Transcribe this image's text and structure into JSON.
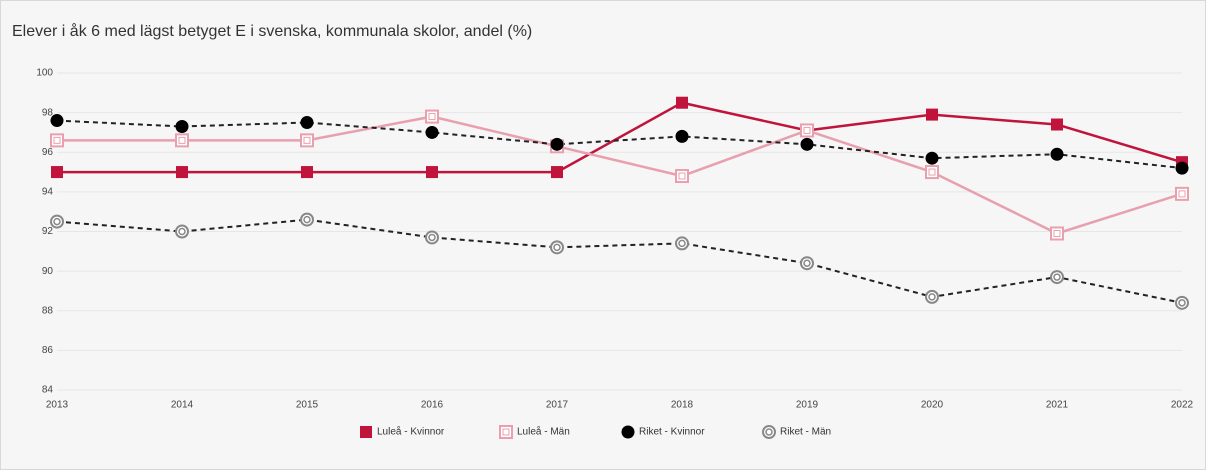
{
  "chart_data": {
    "type": "line",
    "title": "Elever i åk 6 med lägst betyget E i svenska, kommunala skolor, andel (%)",
    "categories": [
      "2013",
      "2014",
      "2015",
      "2016",
      "2017",
      "2018",
      "2019",
      "2020",
      "2021",
      "2022"
    ],
    "series": [
      {
        "name": "Luleå - Kvinnor",
        "color": "#c0143c",
        "marker": "square",
        "dashed": false,
        "values": [
          95,
          95,
          95,
          95,
          95,
          98.5,
          97.1,
          97.9,
          97.4,
          95.5
        ]
      },
      {
        "name": "Luleå - Män",
        "color": "#e8a0ae",
        "marker": "open-square",
        "dashed": false,
        "values": [
          96.6,
          96.6,
          96.6,
          97.8,
          96.3,
          94.8,
          97.1,
          95.0,
          91.9,
          93.9
        ]
      },
      {
        "name": "Riket - Kvinnor",
        "color": "#000000",
        "marker": "circle",
        "dashed": true,
        "values": [
          97.6,
          97.3,
          97.5,
          97.0,
          96.4,
          96.8,
          96.4,
          95.7,
          95.9,
          95.2
        ]
      },
      {
        "name": "Riket - Män",
        "color": "#888888",
        "marker": "ring",
        "dashed": true,
        "values": [
          92.5,
          92.0,
          92.6,
          91.7,
          91.2,
          91.4,
          90.4,
          88.7,
          89.7,
          88.4
        ]
      }
    ],
    "ylim": [
      84,
      100
    ],
    "yticks": [
      84,
      86,
      88,
      90,
      92,
      94,
      96,
      98,
      100
    ],
    "grid": true
  }
}
